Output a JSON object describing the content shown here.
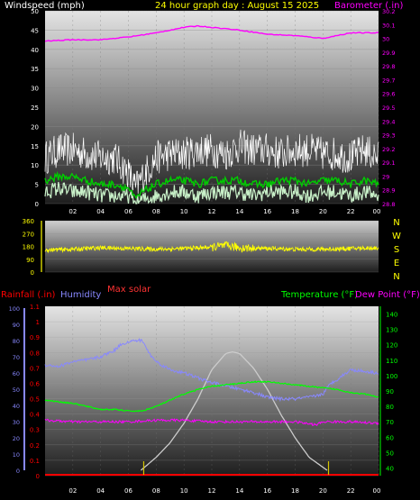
{
  "header": {
    "left_label": "Windspeed (mph)",
    "center_label": "24 hour graph day : August 15 2025",
    "right_label": "Barometer (.in)"
  },
  "colors": {
    "wind_label": "#ffffff",
    "title": "#ffff00",
    "barometer": "#ff00ff",
    "wind_gust": "#ffffff",
    "wind_avg": "#00cc00",
    "wind_low": "#c8f0c8",
    "direction": "#ffff00",
    "rainfall": "#ff0000",
    "humidity": "#8888ff",
    "max_solar": "#ff3333",
    "temperature": "#00ff00",
    "dewpoint": "#ff00ff",
    "solar": "#cccccc",
    "tick_default": "#ffffff"
  },
  "chart_data": [
    {
      "id": "wind",
      "type": "line",
      "x_ticks": [
        "02",
        "04",
        "06",
        "08",
        "10",
        "12",
        "14",
        "16",
        "18",
        "20",
        "22",
        "00"
      ],
      "y_left_ticks": [
        "0",
        "5",
        "10",
        "15",
        "20",
        "25",
        "30",
        "35",
        "40",
        "45",
        "50"
      ],
      "y_left_range": [
        0,
        50
      ],
      "y_right_ticks": [
        "28.8",
        "28.9",
        "29",
        "29.1",
        "29.2",
        "29.3",
        "29.4",
        "29.5",
        "29.6",
        "29.7",
        "29.8",
        "29.9",
        "30",
        "30.1",
        "30.2"
      ],
      "y_right_range": [
        28.8,
        30.2
      ],
      "legend": {
        "left": "Windspeed (mph)",
        "right": "Barometer (.in)"
      },
      "series": [
        {
          "name": "Barometer (.in)",
          "axis": "right",
          "x": [
            0,
            2,
            4,
            6,
            8,
            10,
            11,
            12,
            14,
            16,
            18,
            20,
            21,
            22,
            24
          ],
          "y": [
            29.98,
            29.99,
            29.99,
            30.01,
            30.04,
            30.08,
            30.09,
            30.08,
            30.06,
            30.03,
            30.02,
            30.0,
            30.02,
            30.04,
            30.04
          ]
        },
        {
          "name": "gust",
          "axis": "left",
          "x": [
            0,
            1,
            2,
            3,
            4,
            5,
            6,
            6.5,
            7,
            8,
            9,
            10,
            11,
            12,
            13,
            14,
            15,
            16,
            17,
            18,
            19,
            20,
            21,
            22,
            23,
            24
          ],
          "y": [
            11,
            13,
            13,
            12,
            11,
            11,
            7,
            3,
            6,
            11,
            12,
            12,
            13,
            13,
            12,
            14,
            13,
            13,
            12,
            13,
            13,
            12,
            12,
            11,
            13,
            11
          ]
        },
        {
          "name": "average",
          "axis": "left",
          "x": [
            0,
            1,
            2,
            3,
            4,
            5,
            6,
            6.5,
            7,
            8,
            9,
            10,
            11,
            12,
            13,
            14,
            15,
            16,
            17,
            18,
            19,
            20,
            21,
            22,
            23,
            24
          ],
          "y": [
            6,
            7,
            7,
            6,
            5,
            5,
            4,
            1,
            3,
            5,
            6,
            6,
            5,
            6,
            6,
            6,
            5,
            5,
            6,
            6,
            5,
            6,
            6,
            5,
            6,
            5
          ]
        },
        {
          "name": "low",
          "axis": "left",
          "x": [
            0,
            1,
            2,
            3,
            4,
            5,
            6,
            6.5,
            7,
            8,
            9,
            10,
            11,
            12,
            13,
            14,
            15,
            16,
            17,
            18,
            19,
            20,
            21,
            22,
            23,
            24
          ],
          "y": [
            3,
            4,
            3,
            3,
            2,
            2,
            2,
            0,
            1,
            2,
            3,
            3,
            2,
            3,
            3,
            3,
            2,
            3,
            3,
            3,
            2,
            3,
            3,
            2,
            3,
            2
          ]
        }
      ]
    },
    {
      "id": "direction",
      "type": "line",
      "y_ticks": [
        "0",
        "90",
        "180",
        "270",
        "360"
      ],
      "y_range": [
        0,
        360
      ],
      "compass": [
        "N",
        "W",
        "S",
        "E",
        "N"
      ],
      "series": [
        {
          "name": "direction",
          "x": [
            0,
            2,
            4,
            6,
            8,
            10,
            12,
            13,
            14,
            16,
            18,
            20,
            22,
            24
          ],
          "y": [
            155,
            160,
            170,
            165,
            160,
            165,
            175,
            185,
            170,
            165,
            160,
            160,
            165,
            170
          ]
        }
      ]
    },
    {
      "id": "temperature",
      "type": "line",
      "legend": {
        "rainfall": "Rainfall (.in)",
        "humidity": "Humidity",
        "max_solar": "Max solar",
        "temperature": "Temperature (°F)",
        "dewpoint": "Dew Point (°F)"
      },
      "x_ticks": [
        "02",
        "04",
        "06",
        "08",
        "10",
        "12",
        "14",
        "16",
        "18",
        "20",
        "22",
        "00"
      ],
      "y_humidity_ticks": [
        "0",
        "10",
        "20",
        "30",
        "40",
        "50",
        "60",
        "70",
        "80",
        "90",
        "100"
      ],
      "y_humidity_range": [
        0,
        100
      ],
      "y_rain_ticks": [
        "0",
        "0.1",
        "0.2",
        "0.3",
        "0.4",
        "0.5",
        "0.6",
        "0.7",
        "0.8",
        "0.9",
        "1",
        "1.1"
      ],
      "y_rain_range": [
        0,
        1.1
      ],
      "y_temp_ticks": [
        "40",
        "50",
        "60",
        "70",
        "80",
        "90",
        "100",
        "110",
        "120",
        "130",
        "140"
      ],
      "y_temp_range": [
        35,
        145
      ],
      "series": [
        {
          "name": "Humidity",
          "axis": "humidity",
          "x": [
            0,
            1,
            2,
            3,
            4,
            5,
            5.5,
            6,
            6.5,
            7,
            7.5,
            8,
            9,
            10,
            11,
            12,
            13,
            14,
            15,
            16,
            17,
            18,
            19,
            20,
            20.5,
            21,
            22,
            23,
            24
          ],
          "y": [
            65,
            64,
            67,
            68,
            70,
            74,
            78,
            79,
            80,
            80,
            72,
            67,
            62,
            60,
            57,
            54,
            52,
            50,
            48,
            45,
            44,
            44,
            45,
            47,
            53,
            56,
            62,
            61,
            60
          ]
        },
        {
          "name": "Temperature (°F)",
          "axis": "temp",
          "x": [
            0,
            1,
            2,
            3,
            4,
            5,
            6,
            7,
            8,
            9,
            10,
            11,
            12,
            13,
            14,
            15,
            16,
            17,
            18,
            19,
            20,
            21,
            22,
            23,
            24
          ],
          "y": [
            84,
            83,
            82,
            80,
            78,
            78,
            77,
            77,
            80,
            84,
            88,
            91,
            93,
            94,
            95,
            96,
            96,
            95,
            94,
            93,
            92,
            91,
            89,
            88,
            86
          ]
        },
        {
          "name": "Dew Point (°F)",
          "axis": "temp",
          "x": [
            0,
            2,
            4,
            6,
            8,
            10,
            12,
            14,
            16,
            18,
            19.5,
            20,
            22,
            24
          ],
          "y": [
            71,
            70,
            70,
            70,
            71,
            71,
            70,
            70,
            70,
            70,
            68,
            70,
            70,
            69
          ]
        },
        {
          "name": "solar",
          "axis": "humidity",
          "x": [
            6.9,
            8,
            9,
            10,
            11,
            12,
            13,
            13.5,
            14,
            15,
            16,
            17,
            18,
            19,
            20.3
          ],
          "y": [
            0,
            8,
            17,
            29,
            44,
            62,
            72,
            73,
            72,
            63,
            50,
            34,
            20,
            8,
            0
          ]
        },
        {
          "name": "Rainfall (.in)",
          "axis": "rain",
          "x": [
            0,
            24
          ],
          "y": [
            0,
            0
          ]
        }
      ],
      "markers_x": [
        7.1,
        20.4
      ]
    }
  ]
}
